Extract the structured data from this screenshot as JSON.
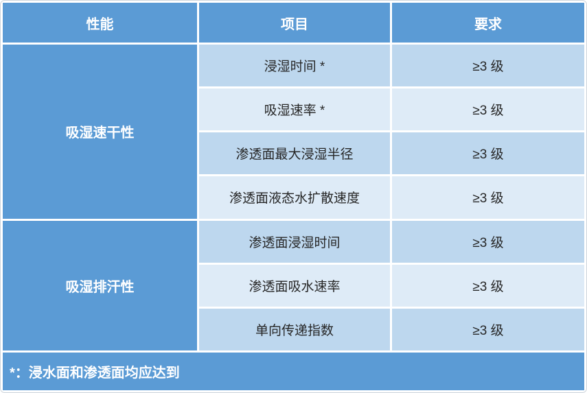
{
  "table": {
    "columns": [
      {
        "label": "性能"
      },
      {
        "label": "项目"
      },
      {
        "label": "要求"
      }
    ],
    "groups": [
      {
        "name": "吸湿速干性",
        "rows": [
          {
            "item": "浸湿时间 *",
            "requirement": "≥3 级"
          },
          {
            "item": "吸湿速率 *",
            "requirement": "≥3 级"
          },
          {
            "item": "渗透面最大浸湿半径",
            "requirement": "≥3 级"
          },
          {
            "item": "渗透面液态水扩散速度",
            "requirement": "≥3 级"
          }
        ]
      },
      {
        "name": "吸湿排汗性",
        "rows": [
          {
            "item": "渗透面浸湿时间",
            "requirement": "≥3 级"
          },
          {
            "item": "渗透面吸水速率",
            "requirement": "≥3 级"
          },
          {
            "item": "单向传递指数",
            "requirement": "≥3 级"
          }
        ]
      }
    ],
    "footnote": "*：浸水面和渗透面均应达到"
  },
  "chart_data": {
    "type": "table",
    "title": "",
    "columns": [
      "性能",
      "项目",
      "要求"
    ],
    "rows": [
      [
        "吸湿速干性",
        "浸湿时间 *",
        "≥3 级"
      ],
      [
        "吸湿速干性",
        "吸湿速率 *",
        "≥3 级"
      ],
      [
        "吸湿速干性",
        "渗透面最大浸湿半径",
        "≥3 级"
      ],
      [
        "吸湿速干性",
        "渗透面液态水扩散速度",
        "≥3 级"
      ],
      [
        "吸湿排汗性",
        "渗透面浸湿时间",
        "≥3 级"
      ],
      [
        "吸湿排汗性",
        "渗透面吸水速率",
        "≥3 级"
      ],
      [
        "吸湿排汗性",
        "单向传递指数",
        "≥3 级"
      ]
    ],
    "footnote": "*：浸水面和渗透面均应达到"
  },
  "colors": {
    "header_bg": "#5B9BD5",
    "band_dark": "#BDD7EE",
    "band_light": "#DEEBF7",
    "header_text": "#FFFFFF",
    "body_text": "#262626",
    "frame_border": "#CCD3DB"
  }
}
